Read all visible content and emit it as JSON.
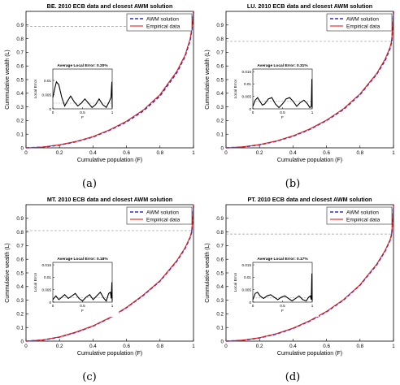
{
  "figure": {
    "sub_captions": [
      "(a)",
      "(b)",
      "(c)",
      "(d)"
    ]
  },
  "colors": {
    "awm": "#2b2bd6",
    "empirical": "#e01e1e",
    "threshold": "#9a9a9a",
    "axis": "#000000",
    "inset_curve": "#000000"
  },
  "chart_data": [
    {
      "type": "line",
      "title": "BE. 2010 ECB data and closest AWM solution",
      "xlabel": "Cumulative population (F)",
      "ylabel": "Cummulative wealth (L)",
      "xlim": [
        0,
        1
      ],
      "ylim": [
        0,
        1
      ],
      "xticks": [
        "0",
        "0.2",
        "0.4",
        "0.6",
        "0.8",
        "1"
      ],
      "yticks": [
        "0",
        "0.1",
        "0.2",
        "0.3",
        "0.4",
        "0.5",
        "0.6",
        "0.7",
        "0.8",
        "0.9"
      ],
      "legend": [
        "AWM solution",
        "Empirical data"
      ],
      "legend_position": "top-right",
      "threshold_y": 0.89,
      "series": [
        {
          "name": "AWM solution",
          "style": "dashed",
          "x": [
            0,
            0.1,
            0.2,
            0.3,
            0.4,
            0.5,
            0.6,
            0.7,
            0.8,
            0.9,
            0.95,
            0.98,
            0.99,
            1.0
          ],
          "y": [
            0,
            0.005,
            0.02,
            0.045,
            0.08,
            0.13,
            0.19,
            0.27,
            0.38,
            0.55,
            0.67,
            0.79,
            0.86,
            1.0
          ]
        },
        {
          "name": "Empirical data",
          "style": "solid",
          "x": [
            0,
            0.1,
            0.2,
            0.3,
            0.4,
            0.5,
            0.6,
            0.7,
            0.8,
            0.9,
            0.95,
            0.98,
            0.99,
            1.0
          ],
          "y": [
            0,
            0.006,
            0.022,
            0.047,
            0.083,
            0.133,
            0.195,
            0.277,
            0.39,
            0.56,
            0.68,
            0.8,
            0.87,
            1.0
          ]
        }
      ],
      "inset": {
        "title": "Average Local Error: 0.20%",
        "ylabel": "Local Error",
        "xlabel": "F",
        "xticks": [
          "0",
          "0.5",
          "1"
        ],
        "yticks": [
          "0",
          "0.005",
          "0.01"
        ],
        "ylim": [
          0,
          0.014
        ],
        "average": 0.002,
        "x": [
          0,
          0.03,
          0.06,
          0.1,
          0.15,
          0.2,
          0.24,
          0.3,
          0.36,
          0.42,
          0.48,
          0.54,
          0.6,
          0.66,
          0.72,
          0.78,
          0.84,
          0.9,
          0.95,
          0.98,
          0.995,
          1.0
        ],
        "y": [
          0.004,
          0.007,
          0.0095,
          0.0085,
          0.004,
          0.001,
          0.0025,
          0.0045,
          0.0025,
          0.001,
          0.002,
          0.0035,
          0.002,
          0.0005,
          0.0015,
          0.0035,
          0.0015,
          0.0005,
          0.0025,
          0.004,
          0.0095,
          0.0005
        ]
      }
    },
    {
      "type": "line",
      "title": "LU. 2010 ECB data and closest AWM solution",
      "xlabel": "Cumulative population (F)",
      "ylabel": "Cummulative wealth (L)",
      "xlim": [
        0,
        1
      ],
      "ylim": [
        0,
        1
      ],
      "xticks": [
        "0",
        "0.2",
        "0.4",
        "0.6",
        "0.8",
        "1"
      ],
      "yticks": [
        "0",
        "0.1",
        "0.2",
        "0.3",
        "0.4",
        "0.5",
        "0.6",
        "0.7",
        "0.8",
        "0.9"
      ],
      "legend": [
        "AWM solution",
        "Empirical data"
      ],
      "legend_position": "top-right",
      "threshold_y": 0.78,
      "series": [
        {
          "name": "AWM solution",
          "style": "dashed",
          "x": [
            0,
            0.1,
            0.2,
            0.3,
            0.4,
            0.5,
            0.6,
            0.7,
            0.8,
            0.9,
            0.95,
            0.98,
            0.99,
            1.0
          ],
          "y": [
            0,
            0.006,
            0.022,
            0.048,
            0.085,
            0.135,
            0.2,
            0.28,
            0.39,
            0.54,
            0.64,
            0.73,
            0.78,
            1.0
          ]
        },
        {
          "name": "Empirical data",
          "style": "solid",
          "x": [
            0,
            0.1,
            0.2,
            0.3,
            0.4,
            0.5,
            0.6,
            0.7,
            0.8,
            0.9,
            0.95,
            0.98,
            0.99,
            1.0
          ],
          "y": [
            0,
            0.007,
            0.024,
            0.05,
            0.088,
            0.138,
            0.203,
            0.285,
            0.395,
            0.545,
            0.65,
            0.74,
            0.79,
            1.0
          ]
        }
      ],
      "inset": {
        "title": "Average Local Error: 0.31%",
        "ylabel": "Local Error",
        "xlabel": "F",
        "xticks": [
          "0",
          "0.5",
          "1"
        ],
        "yticks": [
          "0",
          "0.005",
          "0.01",
          "0.015"
        ],
        "ylim": [
          0,
          0.016
        ],
        "average": 0.003,
        "x": [
          0,
          0.04,
          0.08,
          0.12,
          0.16,
          0.2,
          0.26,
          0.32,
          0.38,
          0.44,
          0.5,
          0.56,
          0.62,
          0.68,
          0.74,
          0.8,
          0.86,
          0.92,
          0.96,
          0.985,
          0.995,
          1.0
        ],
        "y": [
          0.001,
          0.0035,
          0.0045,
          0.003,
          0.0015,
          0.002,
          0.004,
          0.0045,
          0.002,
          0.0005,
          0.002,
          0.004,
          0.0045,
          0.003,
          0.001,
          0.0025,
          0.0035,
          0.002,
          0.0005,
          0.001,
          0.012,
          0.0005
        ]
      }
    },
    {
      "type": "line",
      "title": "MT. 2010 ECB data and closest AWM solution",
      "xlabel": "Cumulative population (F)",
      "ylabel": "Cummulative wealth (L)",
      "xlim": [
        0,
        1
      ],
      "ylim": [
        0,
        1
      ],
      "xticks": [
        "0",
        "0.2",
        "0.4",
        "0.6",
        "0.8",
        "1"
      ],
      "yticks": [
        "0",
        "0.1",
        "0.2",
        "0.3",
        "0.4",
        "0.5",
        "0.6",
        "0.7",
        "0.8",
        "0.9"
      ],
      "legend": [
        "AWM solution",
        "Empirical data"
      ],
      "legend_position": "top-right",
      "threshold_y": 0.81,
      "series": [
        {
          "name": "AWM solution",
          "style": "dashed",
          "x": [
            0,
            0.1,
            0.2,
            0.3,
            0.4,
            0.5,
            0.6,
            0.7,
            0.8,
            0.9,
            0.95,
            0.98,
            0.99,
            1.0
          ],
          "y": [
            0,
            0.008,
            0.03,
            0.065,
            0.11,
            0.17,
            0.245,
            0.335,
            0.44,
            0.585,
            0.68,
            0.76,
            0.8,
            1.0
          ]
        },
        {
          "name": "Empirical data",
          "style": "solid",
          "x": [
            0,
            0.1,
            0.2,
            0.3,
            0.4,
            0.5,
            0.6,
            0.7,
            0.8,
            0.9,
            0.95,
            0.98,
            0.99,
            1.0
          ],
          "y": [
            0,
            0.009,
            0.031,
            0.067,
            0.112,
            0.172,
            0.247,
            0.338,
            0.443,
            0.59,
            0.685,
            0.765,
            0.81,
            1.0
          ]
        }
      ],
      "inset": {
        "title": "Average Local Error: 0.18%",
        "ylabel": "Local Error",
        "xlabel": "F",
        "xticks": [
          "0",
          "0.5",
          "1"
        ],
        "yticks": [
          "0",
          "0.005",
          "0.01",
          "0.015"
        ],
        "ylim": [
          0,
          0.016
        ],
        "average": 0.0018,
        "x": [
          0,
          0.05,
          0.1,
          0.15,
          0.2,
          0.26,
          0.32,
          0.38,
          0.44,
          0.5,
          0.56,
          0.62,
          0.68,
          0.74,
          0.8,
          0.86,
          0.9,
          0.94,
          0.97,
          0.985,
          0.995,
          1.0
        ],
        "y": [
          0.001,
          0.0025,
          0.001,
          0.002,
          0.003,
          0.0015,
          0.0025,
          0.0035,
          0.0015,
          0.0005,
          0.002,
          0.003,
          0.001,
          0.0025,
          0.004,
          0.0015,
          0.0005,
          0.0035,
          0.004,
          0.0015,
          0.008,
          0.0005
        ]
      }
    },
    {
      "type": "line",
      "title": "PT. 2010 ECB data and closest AWM solution",
      "xlabel": "Cumulative population (F)",
      "ylabel": "Cummulative wealth (L)",
      "xlim": [
        0,
        1
      ],
      "ylim": [
        0,
        1
      ],
      "xticks": [
        "0",
        "0.2",
        "0.4",
        "0.6",
        "0.8",
        "1"
      ],
      "yticks": [
        "0",
        "0.1",
        "0.2",
        "0.3",
        "0.4",
        "0.5",
        "0.6",
        "0.7",
        "0.8",
        "0.9"
      ],
      "legend": [
        "AWM solution",
        "Empirical data"
      ],
      "legend_position": "top-right",
      "threshold_y": 0.785,
      "series": [
        {
          "name": "AWM solution",
          "style": "dashed",
          "x": [
            0,
            0.1,
            0.2,
            0.3,
            0.4,
            0.5,
            0.6,
            0.7,
            0.8,
            0.9,
            0.95,
            0.98,
            0.99,
            1.0
          ],
          "y": [
            0,
            0.006,
            0.024,
            0.052,
            0.093,
            0.147,
            0.215,
            0.3,
            0.41,
            0.56,
            0.66,
            0.74,
            0.785,
            1.0
          ]
        },
        {
          "name": "Empirical data",
          "style": "solid",
          "x": [
            0,
            0.1,
            0.2,
            0.3,
            0.4,
            0.5,
            0.6,
            0.7,
            0.8,
            0.9,
            0.95,
            0.98,
            0.99,
            1.0
          ],
          "y": [
            0,
            0.007,
            0.025,
            0.054,
            0.095,
            0.15,
            0.218,
            0.303,
            0.413,
            0.565,
            0.665,
            0.745,
            0.79,
            1.0
          ]
        }
      ],
      "inset": {
        "title": "Average Local Error: 0.17%",
        "ylabel": "Local Error",
        "xlabel": "F",
        "xticks": [
          "0",
          "0.5",
          "1"
        ],
        "yticks": [
          "0",
          "0.005",
          "0.01",
          "0.015"
        ],
        "ylim": [
          0,
          0.016
        ],
        "average": 0.0017,
        "x": [
          0,
          0.04,
          0.08,
          0.12,
          0.18,
          0.24,
          0.3,
          0.36,
          0.42,
          0.48,
          0.54,
          0.6,
          0.66,
          0.72,
          0.78,
          0.84,
          0.9,
          0.94,
          0.97,
          0.985,
          0.995,
          1.0
        ],
        "y": [
          0.001,
          0.0035,
          0.004,
          0.0025,
          0.0015,
          0.0025,
          0.003,
          0.002,
          0.001,
          0.002,
          0.0025,
          0.0015,
          0.0005,
          0.0015,
          0.0025,
          0.001,
          0.0005,
          0.002,
          0.0025,
          0.001,
          0.0115,
          0.0005
        ]
      }
    }
  ]
}
